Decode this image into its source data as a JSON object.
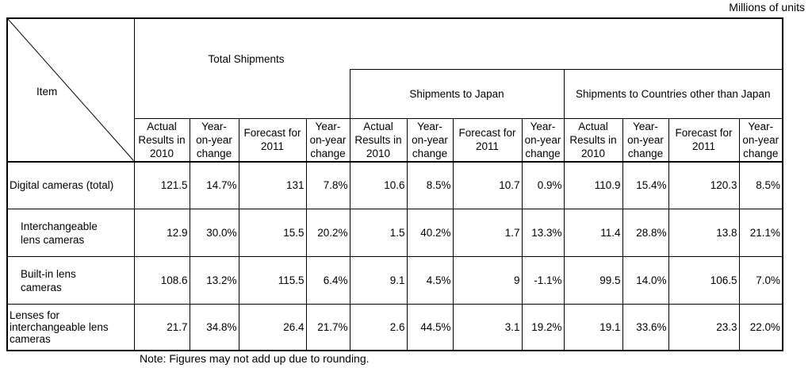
{
  "units_note": "Millions of units",
  "header": {
    "item": "Item",
    "total_shipments": "Total Shipments",
    "japan": "Shipments to Japan",
    "other": "Shipments to Countries other than Japan",
    "sub": {
      "actual_1": "Actual",
      "actual_2": "Results in",
      "actual_3": "2010",
      "yoy_1": "Year-",
      "yoy_2": "on-year",
      "yoy_3": "change",
      "forecast_1": "Forecast for",
      "forecast_2": "2011"
    }
  },
  "rows": [
    {
      "label": "Digital cameras (total)",
      "values": [
        "121.5",
        "14.7%",
        "131",
        "7.8%",
        "10.6",
        "8.5%",
        "10.7",
        "0.9%",
        "110.9",
        "15.4%",
        "120.3",
        "8.5%"
      ]
    },
    {
      "label_1": "Interchangeable",
      "label_2": "lens cameras",
      "values": [
        "12.9",
        "30.0%",
        "15.5",
        "20.2%",
        "1.5",
        "40.2%",
        "1.7",
        "13.3%",
        "11.4",
        "28.8%",
        "13.8",
        "21.1%"
      ]
    },
    {
      "label_1": "Built-in lens",
      "label_2": "cameras",
      "values": [
        "108.6",
        "13.2%",
        "115.5",
        "6.4%",
        "9.1",
        "4.5%",
        "9",
        "-1.1%",
        "99.5",
        "14.0%",
        "106.5",
        "7.0%"
      ]
    },
    {
      "label_1": "Lenses for",
      "label_2": "interchangeable lens",
      "label_3": "cameras",
      "values": [
        "21.7",
        "34.8%",
        "26.4",
        "21.7%",
        "2.6",
        "44.5%",
        "3.1",
        "19.2%",
        "19.1",
        "33.6%",
        "23.3",
        "22.0%"
      ]
    }
  ],
  "note": "Note: Figures may not add up due to rounding."
}
